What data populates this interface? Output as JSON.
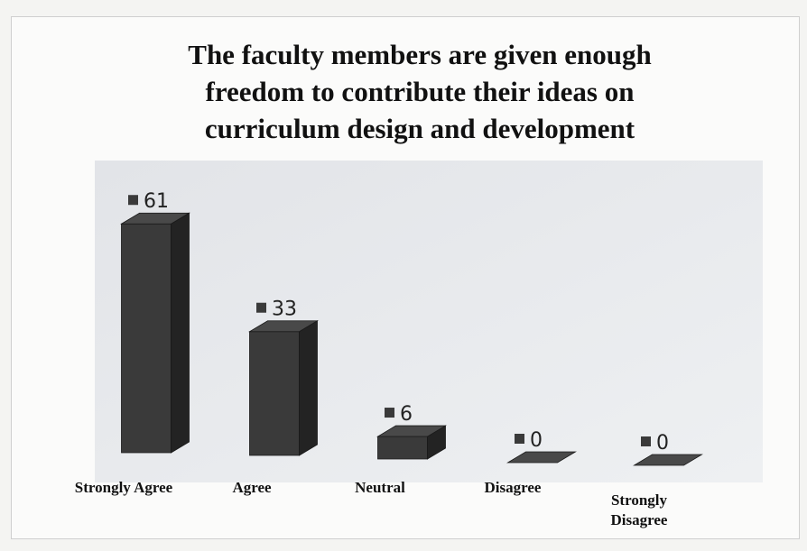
{
  "chart_data": {
    "type": "bar3d",
    "title": "The faculty members are given enough freedom to contribute their ideas on curriculum design and development",
    "categories": [
      "Strongly Agree",
      "Agree",
      "Neutral",
      "Disagree",
      "Strongly Disagree"
    ],
    "values": [
      61,
      33,
      6,
      0,
      0
    ],
    "color": "#3a3a3a"
  }
}
